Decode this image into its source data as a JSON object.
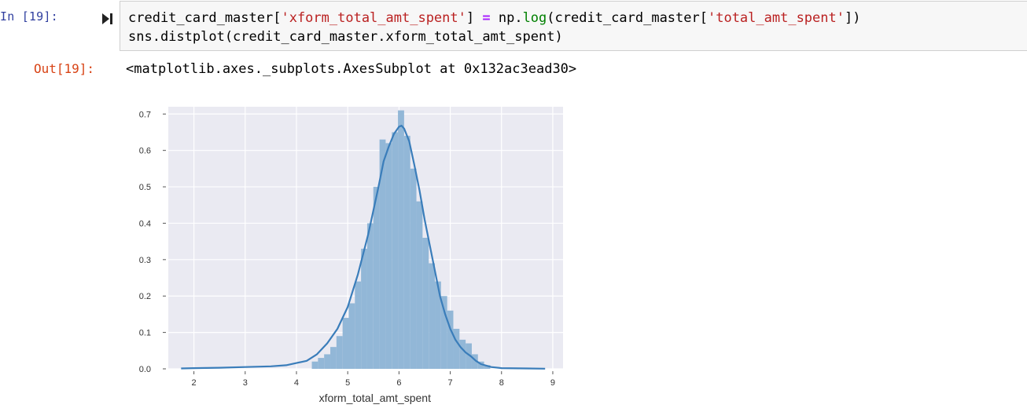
{
  "cell": {
    "in_prompt": "In [19]:",
    "code_line1": {
      "a": "credit_card_master[",
      "b": "'xform_total_amt_spent'",
      "c": "] ",
      "d": "=",
      "e": " np.",
      "f": "log",
      "g": "(credit_card_master[",
      "h": "'total_amt_spent'",
      "i": "])"
    },
    "code_line2": "sns.distplot(credit_card_master.xform_total_amt_spent)",
    "out_prompt": "Out[19]:",
    "out_text": "<matplotlib.axes._subplots.AxesSubplot at 0x132ac3ead30>"
  },
  "chart_data": {
    "type": "bar",
    "xlabel": "xform_total_amt_spent",
    "ylabel": "",
    "xlim": [
      1.5,
      9.2
    ],
    "ylim": [
      0,
      0.72
    ],
    "xticks": [
      "2",
      "3",
      "4",
      "5",
      "6",
      "7",
      "8",
      "9"
    ],
    "yticks": [
      "0.0",
      "0.1",
      "0.2",
      "0.3",
      "0.4",
      "0.5",
      "0.6",
      "0.7"
    ],
    "grid": true,
    "colors": {
      "bars": "#92b7d7",
      "kde": "#3a7dba",
      "background": "#eaeaf2",
      "grid": "#ffffff"
    },
    "hist_bins": [
      {
        "x0": 4.3,
        "x1": 4.42,
        "value": 0.02
      },
      {
        "x0": 4.42,
        "x1": 4.54,
        "value": 0.03
      },
      {
        "x0": 4.54,
        "x1": 4.66,
        "value": 0.04
      },
      {
        "x0": 4.66,
        "x1": 4.78,
        "value": 0.06
      },
      {
        "x0": 4.78,
        "x1": 4.9,
        "value": 0.09
      },
      {
        "x0": 4.9,
        "x1": 5.02,
        "value": 0.14
      },
      {
        "x0": 5.02,
        "x1": 5.14,
        "value": 0.18
      },
      {
        "x0": 5.14,
        "x1": 5.26,
        "value": 0.24
      },
      {
        "x0": 5.26,
        "x1": 5.38,
        "value": 0.33
      },
      {
        "x0": 5.38,
        "x1": 5.5,
        "value": 0.4
      },
      {
        "x0": 5.5,
        "x1": 5.62,
        "value": 0.5
      },
      {
        "x0": 5.62,
        "x1": 5.74,
        "value": 0.63
      },
      {
        "x0": 5.74,
        "x1": 5.86,
        "value": 0.62
      },
      {
        "x0": 5.86,
        "x1": 5.98,
        "value": 0.65
      },
      {
        "x0": 5.98,
        "x1": 6.1,
        "value": 0.71
      },
      {
        "x0": 6.1,
        "x1": 6.22,
        "value": 0.64
      },
      {
        "x0": 6.22,
        "x1": 6.34,
        "value": 0.55
      },
      {
        "x0": 6.34,
        "x1": 6.46,
        "value": 0.46
      },
      {
        "x0": 6.46,
        "x1": 6.58,
        "value": 0.36
      },
      {
        "x0": 6.58,
        "x1": 6.7,
        "value": 0.29
      },
      {
        "x0": 6.7,
        "x1": 6.82,
        "value": 0.24
      },
      {
        "x0": 6.82,
        "x1": 6.94,
        "value": 0.2
      },
      {
        "x0": 6.94,
        "x1": 7.06,
        "value": 0.16
      },
      {
        "x0": 7.06,
        "x1": 7.18,
        "value": 0.11
      },
      {
        "x0": 7.18,
        "x1": 7.3,
        "value": 0.08
      },
      {
        "x0": 7.3,
        "x1": 7.42,
        "value": 0.07
      },
      {
        "x0": 7.42,
        "x1": 7.54,
        "value": 0.04
      },
      {
        "x0": 7.54,
        "x1": 7.66,
        "value": 0.02
      },
      {
        "x0": 7.66,
        "x1": 7.78,
        "value": 0.01
      }
    ],
    "kde": {
      "x": [
        1.75,
        2.0,
        2.5,
        3.0,
        3.5,
        3.8,
        4.0,
        4.2,
        4.4,
        4.6,
        4.8,
        5.0,
        5.2,
        5.4,
        5.6,
        5.7,
        5.8,
        5.9,
        6.0,
        6.05,
        6.1,
        6.2,
        6.3,
        6.4,
        6.5,
        6.6,
        6.7,
        6.8,
        6.9,
        7.0,
        7.1,
        7.2,
        7.3,
        7.4,
        7.5,
        7.6,
        7.8,
        8.0,
        8.5,
        8.85
      ],
      "y": [
        0.001,
        0.002,
        0.003,
        0.005,
        0.007,
        0.01,
        0.016,
        0.022,
        0.04,
        0.07,
        0.11,
        0.17,
        0.26,
        0.37,
        0.5,
        0.57,
        0.61,
        0.645,
        0.665,
        0.668,
        0.66,
        0.625,
        0.56,
        0.49,
        0.41,
        0.34,
        0.27,
        0.2,
        0.15,
        0.11,
        0.08,
        0.06,
        0.045,
        0.035,
        0.022,
        0.013,
        0.005,
        0.002,
        0.001,
        0.0005
      ]
    }
  }
}
